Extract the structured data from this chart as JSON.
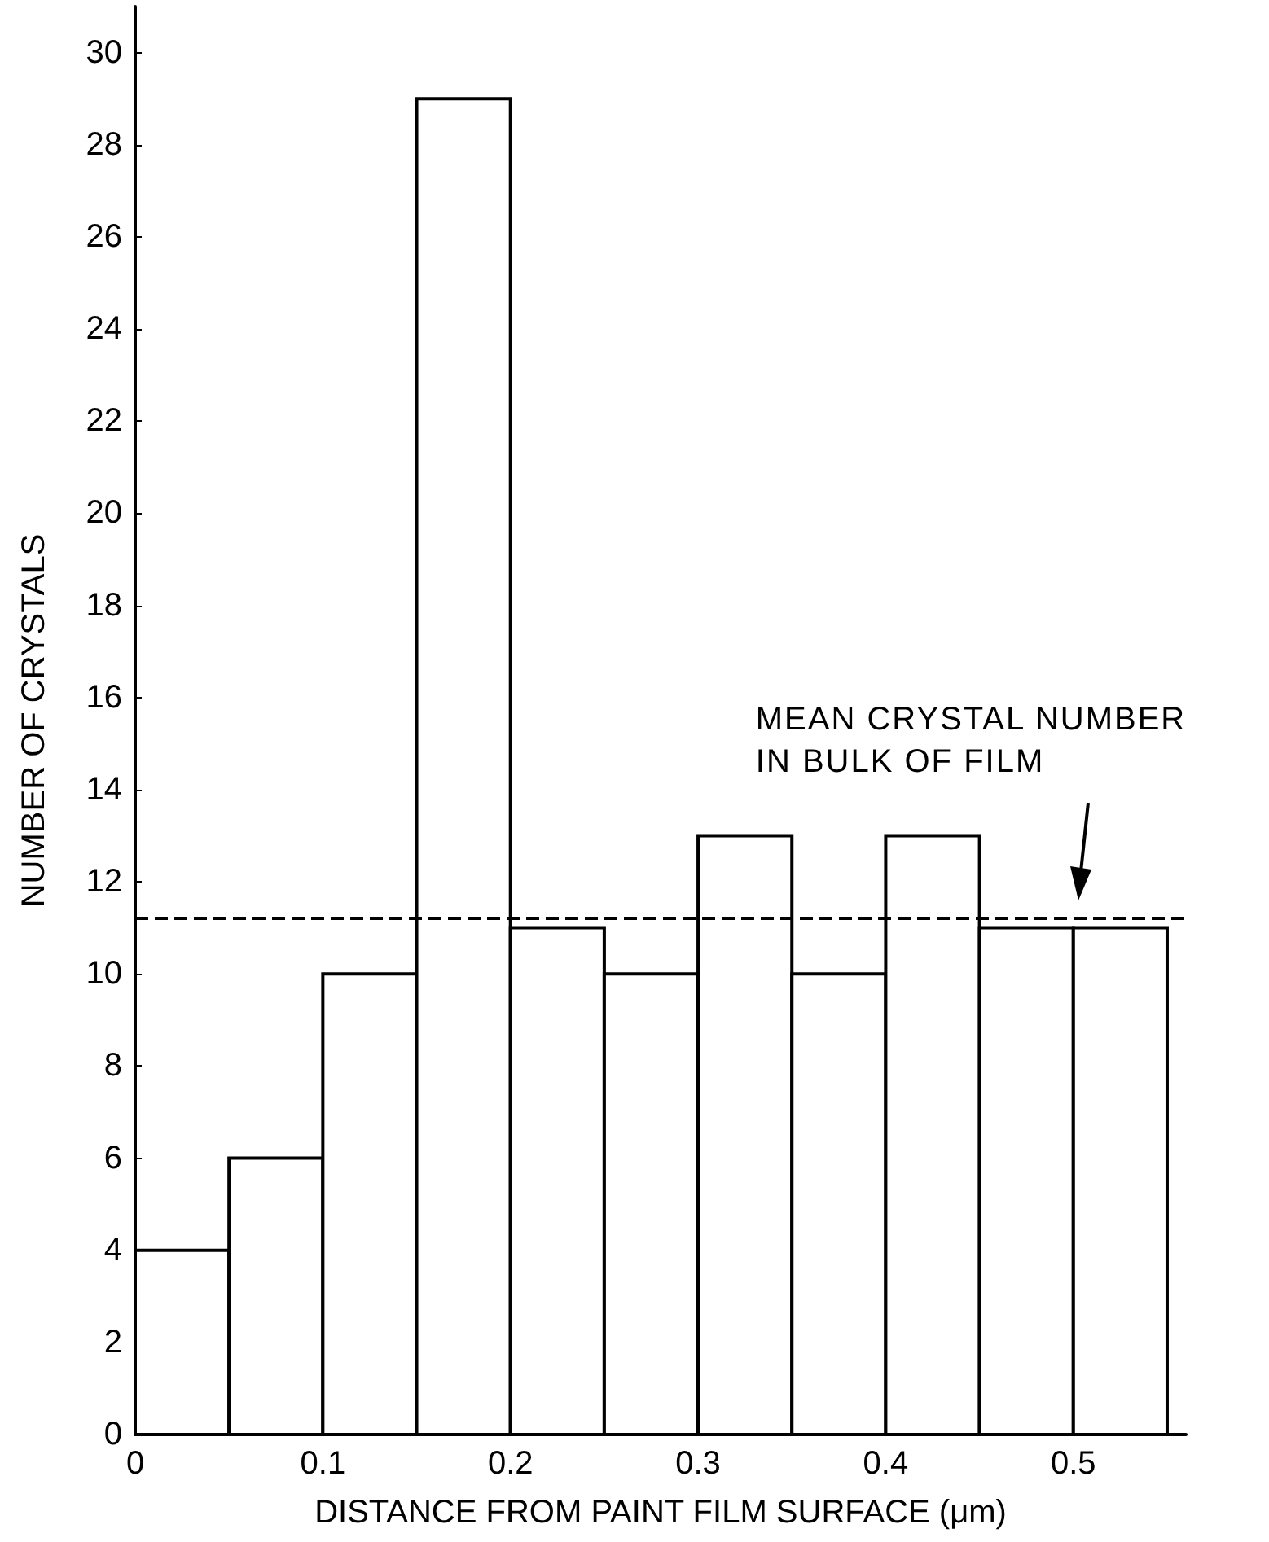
{
  "chart_data": {
    "type": "histogram",
    "xlabel": "DISTANCE FROM PAINT FILM SURFACE (μm)",
    "ylabel": "NUMBER OF CRYSTALS",
    "bins": [
      0,
      0.05,
      0.1,
      0.15,
      0.2,
      0.25,
      0.3,
      0.35,
      0.4,
      0.45,
      0.5,
      0.55
    ],
    "values": [
      4,
      6,
      10,
      29,
      11,
      10,
      13,
      10,
      13,
      11,
      11
    ],
    "color": "#ffffff",
    "xlim": [
      0,
      0.56
    ],
    "xticks": [
      0,
      0.1,
      0.2,
      0.3,
      0.4,
      0.5
    ],
    "ylim": [
      0,
      31
    ],
    "yticks": [
      0,
      2,
      4,
      6,
      8,
      10,
      12,
      14,
      16,
      18,
      20,
      22,
      24,
      26,
      28,
      30
    ],
    "ref_lines": [
      {
        "axis": "y",
        "value": 11.2,
        "line_style": "dashed",
        "color": "#000000"
      }
    ],
    "annotations": [
      "MEAN CRYSTAL NUMBER\nIN BULK OF FILM"
    ],
    "grid": false
  }
}
